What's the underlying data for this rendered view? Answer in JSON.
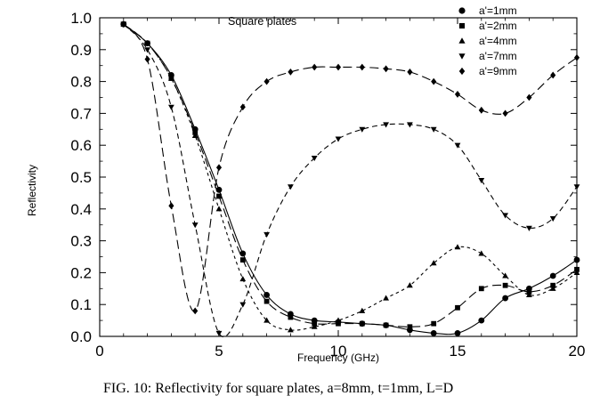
{
  "chart_data": {
    "type": "line",
    "title": "",
    "annotation": "Square plates",
    "xlabel": "Frequency (GHz)",
    "ylabel": "Reflectivity",
    "xlim": [
      0,
      20
    ],
    "ylim": [
      0.0,
      1.0
    ],
    "xticks": [
      0,
      5,
      10,
      15,
      20
    ],
    "xtick_labels": [
      "0",
      "5",
      "10",
      "15",
      "20"
    ],
    "yticks": [
      0.0,
      0.1,
      0.2,
      0.3,
      0.4,
      0.5,
      0.6,
      0.7,
      0.8,
      0.9,
      1.0
    ],
    "ytick_labels": [
      "0.0",
      "0.1",
      "0.2",
      "0.3",
      "0.4",
      "0.5",
      "0.6",
      "0.7",
      "0.8",
      "0.9",
      "1.0"
    ],
    "grid": false,
    "legend_position": "top-right",
    "caption": "FIG. 10: Reflectivity for square plates, a=8mm, t=1mm, L=D",
    "series": [
      {
        "name": "a'=1mm",
        "marker": "circle",
        "dash": "solid",
        "x": [
          1,
          2,
          3,
          4,
          5,
          6,
          7,
          8,
          9,
          10,
          11,
          12,
          13,
          14,
          15,
          16,
          17,
          18,
          19,
          20
        ],
        "y": [
          0.98,
          0.92,
          0.82,
          0.65,
          0.46,
          0.26,
          0.13,
          0.07,
          0.05,
          0.045,
          0.04,
          0.035,
          0.02,
          0.01,
          0.01,
          0.05,
          0.12,
          0.15,
          0.19,
          0.24
        ]
      },
      {
        "name": "a'=2mm",
        "marker": "square",
        "dash": "long-dash",
        "x": [
          1,
          2,
          3,
          4,
          5,
          6,
          7,
          8,
          9,
          10,
          11,
          12,
          13,
          14,
          15,
          16,
          17,
          18,
          19,
          20
        ],
        "y": [
          0.98,
          0.92,
          0.81,
          0.64,
          0.44,
          0.24,
          0.11,
          0.06,
          0.04,
          0.04,
          0.04,
          0.035,
          0.03,
          0.04,
          0.09,
          0.15,
          0.16,
          0.14,
          0.16,
          0.21
        ]
      },
      {
        "name": "a'=4mm",
        "marker": "triangle-up",
        "dash": "short-dash",
        "x": [
          1,
          2,
          3,
          4,
          5,
          6,
          7,
          8,
          9,
          10,
          11,
          12,
          13,
          14,
          15,
          16,
          17,
          18,
          19,
          20
        ],
        "y": [
          0.98,
          0.92,
          0.81,
          0.63,
          0.4,
          0.18,
          0.05,
          0.02,
          0.03,
          0.05,
          0.08,
          0.12,
          0.16,
          0.23,
          0.28,
          0.26,
          0.19,
          0.13,
          0.15,
          0.2
        ]
      },
      {
        "name": "a'=7mm",
        "marker": "triangle-down",
        "dash": "medium-dash",
        "x": [
          1,
          2,
          3,
          4,
          5,
          6,
          7,
          8,
          9,
          10,
          11,
          12,
          13,
          14,
          15,
          16,
          17,
          18,
          19,
          20
        ],
        "y": [
          0.98,
          0.9,
          0.72,
          0.35,
          0.01,
          0.1,
          0.32,
          0.47,
          0.56,
          0.62,
          0.65,
          0.665,
          0.665,
          0.65,
          0.6,
          0.49,
          0.38,
          0.34,
          0.37,
          0.47
        ]
      },
      {
        "name": "a'=9mm",
        "marker": "diamond",
        "dash": "long-dash",
        "x": [
          1,
          2,
          3,
          4,
          5,
          6,
          7,
          8,
          9,
          10,
          11,
          12,
          13,
          14,
          15,
          16,
          17,
          18,
          19,
          20
        ],
        "y": [
          0.98,
          0.87,
          0.41,
          0.08,
          0.53,
          0.72,
          0.8,
          0.83,
          0.845,
          0.845,
          0.845,
          0.84,
          0.83,
          0.8,
          0.76,
          0.71,
          0.7,
          0.75,
          0.82,
          0.875
        ]
      }
    ]
  }
}
